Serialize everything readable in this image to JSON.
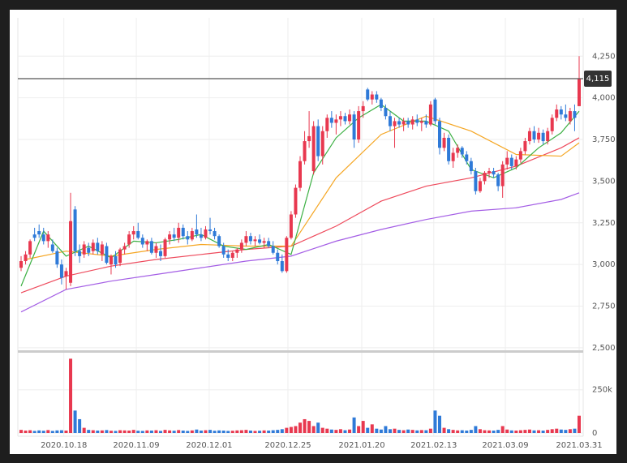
{
  "chart_data": {
    "type": "candlestick",
    "ylim": [
      2480,
      4480
    ],
    "yticks": [
      {
        "value": 2500,
        "label": "2,500"
      },
      {
        "value": 2750,
        "label": "2,750"
      },
      {
        "value": 3000,
        "label": "3,000"
      },
      {
        "value": 3250,
        "label": "3,250"
      },
      {
        "value": 3500,
        "label": "3,500"
      },
      {
        "value": 3750,
        "label": "3,750"
      },
      {
        "value": 4000,
        "label": "4,000"
      },
      {
        "value": 4250,
        "label": "4,250"
      }
    ],
    "xlim": [
      0,
      124
    ],
    "xticks": [
      {
        "value": 9.5,
        "label": "2020.10.18"
      },
      {
        "value": 25.6,
        "label": "2020.11.09"
      },
      {
        "value": 41.8,
        "label": "2020.12.01"
      },
      {
        "value": 59.3,
        "label": "2020.12.25"
      },
      {
        "value": 75.7,
        "label": "2021.01.20"
      },
      {
        "value": 91.7,
        "label": "2021.02.13"
      },
      {
        "value": 107.6,
        "label": "2021.03.09"
      },
      {
        "value": 124,
        "label": "2021.03.31"
      }
    ],
    "grid": true,
    "price_line": {
      "value": 4115,
      "label": "4,115",
      "color": "#555555"
    },
    "series": [
      {
        "type": "candlestick",
        "up_color": "#e8384f",
        "down_color": "#2f7ad8",
        "values": [
          [
            2980,
            3050,
            2960,
            3020
          ],
          [
            3020,
            3080,
            3000,
            3060
          ],
          [
            3060,
            3150,
            3040,
            3140
          ],
          [
            3180,
            3220,
            3140,
            3160
          ],
          [
            3200,
            3240,
            3160,
            3180
          ],
          [
            3180,
            3220,
            3120,
            3140
          ],
          [
            3140,
            3200,
            3100,
            3180
          ],
          [
            3120,
            3150,
            3070,
            3080
          ],
          [
            3080,
            3100,
            2980,
            3000
          ],
          [
            3000,
            3030,
            2880,
            2920
          ],
          [
            2930,
            2980,
            2850,
            2960
          ],
          [
            2890,
            3430,
            2870,
            3260
          ],
          [
            3330,
            3350,
            3050,
            3080
          ],
          [
            3080,
            3120,
            3010,
            3050
          ],
          [
            3060,
            3140,
            3040,
            3120
          ],
          [
            3100,
            3130,
            3050,
            3070
          ],
          [
            3080,
            3150,
            3060,
            3130
          ],
          [
            3130,
            3160,
            3060,
            3080
          ],
          [
            3060,
            3140,
            3020,
            3120
          ],
          [
            3110,
            3130,
            3000,
            3010
          ],
          [
            3000,
            3060,
            2940,
            3050
          ],
          [
            3050,
            3080,
            2980,
            3000
          ],
          [
            3010,
            3100,
            2990,
            3090
          ],
          [
            3090,
            3130,
            3060,
            3110
          ],
          [
            3120,
            3200,
            3100,
            3180
          ],
          [
            3180,
            3230,
            3150,
            3200
          ],
          [
            3200,
            3250,
            3150,
            3160
          ],
          [
            3160,
            3180,
            3100,
            3120
          ],
          [
            3120,
            3150,
            3080,
            3140
          ],
          [
            3140,
            3160,
            3060,
            3070
          ],
          [
            3070,
            3130,
            3040,
            3110
          ],
          [
            3080,
            3120,
            3020,
            3050
          ],
          [
            3050,
            3160,
            3040,
            3150
          ],
          [
            3150,
            3200,
            3120,
            3180
          ],
          [
            3180,
            3220,
            3140,
            3160
          ],
          [
            3160,
            3250,
            3130,
            3220
          ],
          [
            3220,
            3240,
            3150,
            3170
          ],
          [
            3170,
            3200,
            3120,
            3150
          ],
          [
            3150,
            3220,
            3140,
            3200
          ],
          [
            3210,
            3300,
            3160,
            3180
          ],
          [
            3180,
            3220,
            3140,
            3160
          ],
          [
            3160,
            3230,
            3150,
            3210
          ],
          [
            3210,
            3280,
            3180,
            3200
          ],
          [
            3200,
            3220,
            3150,
            3170
          ],
          [
            3170,
            3180,
            3100,
            3110
          ],
          [
            3110,
            3130,
            3040,
            3060
          ],
          [
            3060,
            3090,
            3020,
            3040
          ],
          [
            3040,
            3080,
            3020,
            3070
          ],
          [
            3070,
            3100,
            3040,
            3090
          ],
          [
            3090,
            3150,
            3070,
            3130
          ],
          [
            3130,
            3200,
            3110,
            3170
          ],
          [
            3170,
            3190,
            3120,
            3140
          ],
          [
            3140,
            3170,
            3110,
            3150
          ],
          [
            3150,
            3180,
            3120,
            3130
          ],
          [
            3130,
            3160,
            3100,
            3140
          ],
          [
            3140,
            3160,
            3100,
            3110
          ],
          [
            3110,
            3140,
            3060,
            3070
          ],
          [
            3070,
            3090,
            3000,
            3020
          ],
          [
            3020,
            3060,
            2950,
            2960
          ],
          [
            2960,
            3170,
            2950,
            3160
          ],
          [
            3160,
            3320,
            3150,
            3300
          ],
          [
            3300,
            3480,
            3280,
            3460
          ],
          [
            3460,
            3650,
            3440,
            3620
          ],
          [
            3620,
            3800,
            3600,
            3740
          ],
          [
            3740,
            3920,
            3700,
            3770
          ],
          [
            3560,
            3860,
            3540,
            3830
          ],
          [
            3830,
            3870,
            3620,
            3650
          ],
          [
            3650,
            3830,
            3600,
            3800
          ],
          [
            3800,
            3900,
            3760,
            3880
          ],
          [
            3880,
            3920,
            3820,
            3850
          ],
          [
            3850,
            3900,
            3780,
            3870
          ],
          [
            3870,
            3920,
            3830,
            3890
          ],
          [
            3890,
            3910,
            3840,
            3860
          ],
          [
            3860,
            3930,
            3840,
            3900
          ],
          [
            3900,
            3920,
            3700,
            3750
          ],
          [
            3750,
            3950,
            3730,
            3920
          ],
          [
            3920,
            3980,
            3880,
            3950
          ],
          [
            4050,
            4060,
            3980,
            3990
          ],
          [
            3990,
            4040,
            3960,
            4020
          ],
          [
            4020,
            4040,
            3970,
            3990
          ],
          [
            3990,
            4000,
            3920,
            3940
          ],
          [
            3940,
            3960,
            3870,
            3890
          ],
          [
            3890,
            3920,
            3800,
            3830
          ],
          [
            3830,
            3880,
            3700,
            3860
          ],
          [
            3860,
            3880,
            3820,
            3840
          ],
          [
            3840,
            3880,
            3800,
            3860
          ],
          [
            3860,
            3880,
            3820,
            3840
          ],
          [
            3840,
            3890,
            3810,
            3870
          ],
          [
            3870,
            3900,
            3830,
            3850
          ],
          [
            3850,
            3880,
            3800,
            3860
          ],
          [
            3860,
            3900,
            3820,
            3840
          ],
          [
            3840,
            3980,
            3830,
            3960
          ],
          [
            3990,
            4000,
            3840,
            3860
          ],
          [
            3860,
            3880,
            3660,
            3700
          ],
          [
            3700,
            3790,
            3680,
            3760
          ],
          [
            3760,
            3780,
            3600,
            3620
          ],
          [
            3620,
            3700,
            3580,
            3670
          ],
          [
            3670,
            3720,
            3640,
            3700
          ],
          [
            3700,
            3710,
            3640,
            3660
          ],
          [
            3660,
            3680,
            3600,
            3620
          ],
          [
            3620,
            3640,
            3540,
            3560
          ],
          [
            3560,
            3580,
            3420,
            3440
          ],
          [
            3440,
            3520,
            3430,
            3500
          ],
          [
            3500,
            3560,
            3480,
            3550
          ],
          [
            3550,
            3580,
            3520,
            3560
          ],
          [
            3560,
            3580,
            3520,
            3540
          ],
          [
            3540,
            3550,
            3440,
            3470
          ],
          [
            3470,
            3620,
            3400,
            3600
          ],
          [
            3600,
            3680,
            3570,
            3640
          ],
          [
            3640,
            3660,
            3570,
            3590
          ],
          [
            3590,
            3650,
            3570,
            3630
          ],
          [
            3630,
            3700,
            3610,
            3680
          ],
          [
            3680,
            3760,
            3660,
            3740
          ],
          [
            3740,
            3820,
            3720,
            3800
          ],
          [
            3800,
            3830,
            3730,
            3750
          ],
          [
            3750,
            3820,
            3730,
            3790
          ],
          [
            3790,
            3810,
            3720,
            3740
          ],
          [
            3740,
            3820,
            3720,
            3800
          ],
          [
            3800,
            3900,
            3780,
            3880
          ],
          [
            3880,
            3960,
            3860,
            3930
          ],
          [
            3930,
            3950,
            3870,
            3900
          ],
          [
            3900,
            3960,
            3860,
            3880
          ],
          [
            3860,
            3940,
            3840,
            3920
          ],
          [
            3920,
            3960,
            3800,
            3880
          ],
          [
            3950,
            4250,
            3950,
            4115
          ]
        ]
      }
    ],
    "lines": [
      {
        "color": "#a45ee5",
        "x": [
          0,
          10,
          20,
          30,
          40,
          50,
          60,
          70,
          80,
          90,
          100,
          110,
          120,
          124
        ],
        "values": [
          2715,
          2850,
          2900,
          2940,
          2980,
          3020,
          3050,
          3140,
          3210,
          3270,
          3320,
          3340,
          3390,
          3430
        ]
      },
      {
        "color": "#ee4a5c",
        "x": [
          0,
          10,
          20,
          30,
          40,
          50,
          60,
          70,
          80,
          90,
          100,
          110,
          120,
          124
        ],
        "values": [
          2830,
          2930,
          2990,
          3030,
          3060,
          3090,
          3110,
          3230,
          3380,
          3470,
          3520,
          3590,
          3700,
          3760
        ]
      },
      {
        "color": "#f5a623",
        "x": [
          1,
          10,
          20,
          30,
          40,
          50,
          60,
          70,
          80,
          90,
          100,
          110,
          120,
          124
        ],
        "values": [
          3030,
          3080,
          3050,
          3090,
          3120,
          3110,
          3110,
          3520,
          3780,
          3890,
          3800,
          3660,
          3650,
          3730
        ]
      },
      {
        "color": "#3cb043",
        "x": [
          0,
          5,
          10,
          15,
          20,
          25,
          30,
          35,
          40,
          45,
          50,
          55,
          60,
          65,
          70,
          75,
          80,
          85,
          90,
          95,
          100,
          105,
          110,
          115,
          120,
          124
        ],
        "values": [
          2870,
          3200,
          3050,
          3110,
          3040,
          3140,
          3130,
          3150,
          3180,
          3110,
          3090,
          3120,
          3060,
          3550,
          3760,
          3880,
          3960,
          3860,
          3860,
          3800,
          3570,
          3520,
          3580,
          3700,
          3790,
          3920
        ]
      }
    ],
    "volume": {
      "ylim": [
        0,
        460000
      ],
      "yticks": [
        0,
        {
          "value": 250000,
          "label": "250k"
        }
      ],
      "values": [
        18000,
        14000,
        16000,
        12000,
        15000,
        13000,
        17000,
        12000,
        15000,
        16000,
        14000,
        430000,
        130000,
        80000,
        30000,
        18000,
        16000,
        14000,
        15000,
        17000,
        13000,
        12000,
        16000,
        15000,
        14000,
        18000,
        13000,
        12000,
        15000,
        14000,
        16000,
        12000,
        18000,
        15000,
        13000,
        17000,
        14000,
        12000,
        15000,
        20000,
        14000,
        16000,
        18000,
        13000,
        15000,
        14000,
        12000,
        13000,
        15000,
        16000,
        18000,
        14000,
        12000,
        13000,
        15000,
        14000,
        16000,
        18000,
        22000,
        30000,
        35000,
        40000,
        60000,
        80000,
        70000,
        40000,
        60000,
        30000,
        25000,
        20000,
        18000,
        22000,
        16000,
        20000,
        90000,
        40000,
        70000,
        30000,
        50000,
        25000,
        20000,
        40000,
        22000,
        25000,
        18000,
        16000,
        20000,
        18000,
        15000,
        17000,
        16000,
        25000,
        130000,
        100000,
        30000,
        22000,
        18000,
        15000,
        16000,
        14000,
        18000,
        40000,
        22000,
        16000,
        15000,
        14000,
        18000,
        40000,
        20000,
        15000,
        14000,
        16000,
        18000,
        20000,
        15000,
        16000,
        14000,
        18000,
        22000,
        25000,
        20000,
        18000,
        22000,
        25000,
        100000
      ]
    }
  }
}
